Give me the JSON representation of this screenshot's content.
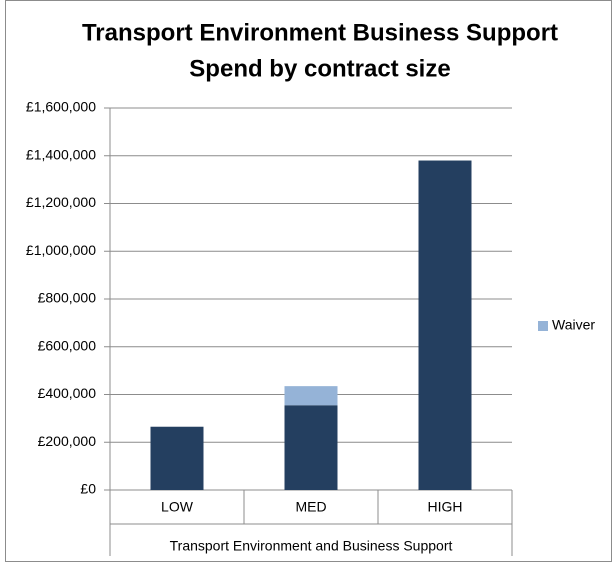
{
  "chart_data": {
    "type": "stacked_bar",
    "title": "Transport Environment Business Support",
    "subtitle": "Spend by contract size",
    "categories": [
      "LOW",
      "MED",
      "HIGH"
    ],
    "group_label": "Transport Environment and Business Support",
    "series": [
      {
        "color": "#243f60",
        "values": [
          265000,
          355000,
          1380000
        ]
      },
      {
        "name": "Waiver",
        "color": "#95b3d7",
        "values": [
          null,
          80000,
          null
        ]
      }
    ],
    "ylim": [
      0,
      1600000
    ],
    "yticks": [
      {
        "value": 0,
        "label": "£0"
      },
      {
        "value": 200000,
        "label": "£200,000"
      },
      {
        "value": 400000,
        "label": "£400,000"
      },
      {
        "value": 600000,
        "label": "£600,000"
      },
      {
        "value": 800000,
        "label": "£800,000"
      },
      {
        "value": 1000000,
        "label": "£1,000,000"
      },
      {
        "value": 1200000,
        "label": "£1,200,000"
      },
      {
        "value": 1400000,
        "label": "£1,400,000"
      },
      {
        "value": 1600000,
        "label": "£1,600,000"
      }
    ],
    "grid": true,
    "legend": "right"
  }
}
